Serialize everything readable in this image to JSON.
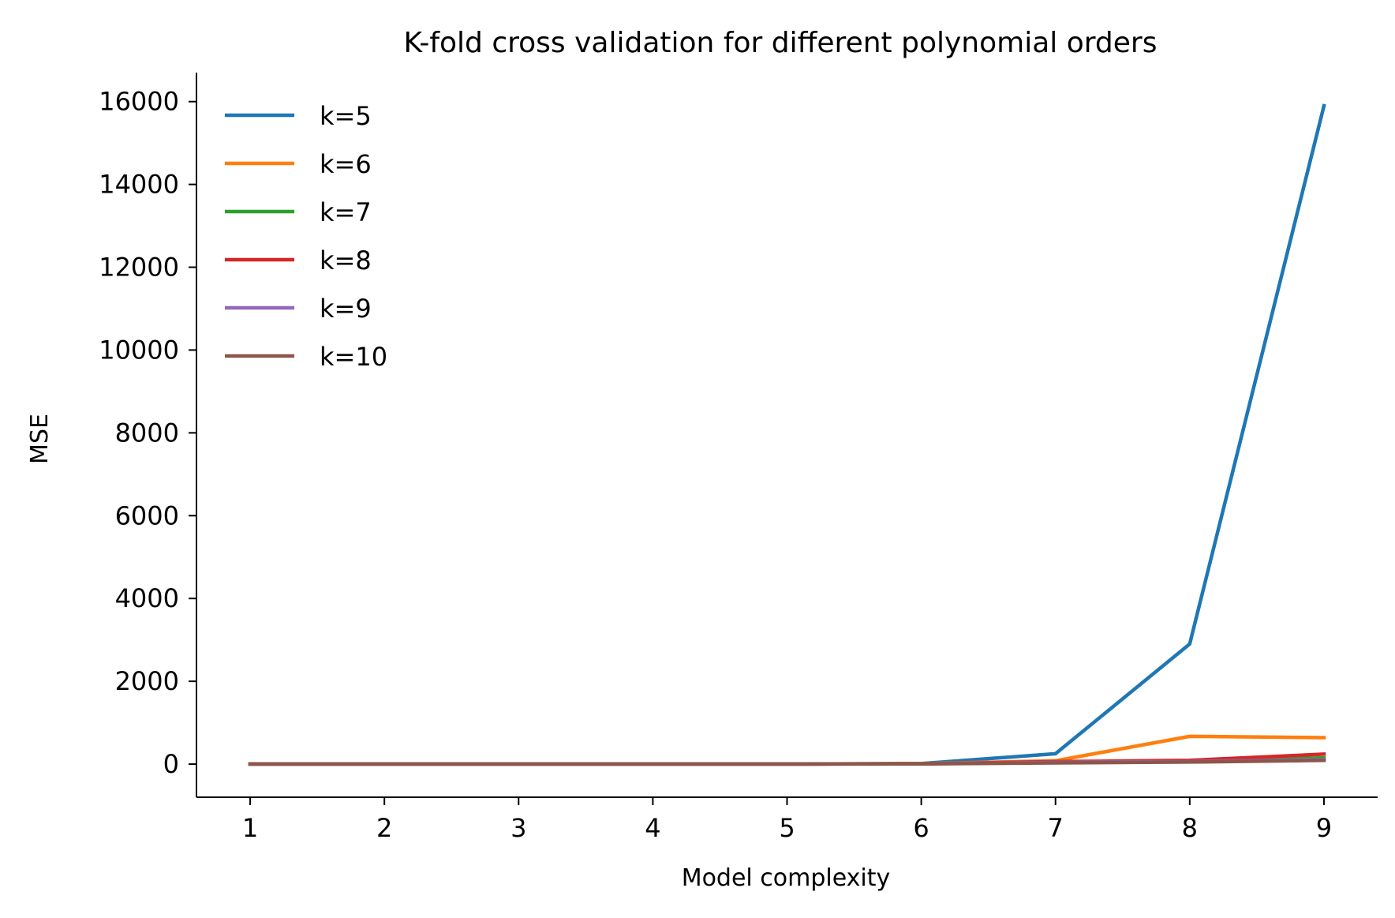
{
  "chart_data": {
    "type": "line",
    "title": "K-fold cross validation for different polynomial orders",
    "xlabel": "Model complexity",
    "ylabel": "MSE",
    "x": [
      1,
      2,
      3,
      4,
      5,
      6,
      7,
      8,
      9
    ],
    "xlim": [
      0.6,
      9.4
    ],
    "ylim": [
      -800,
      16700
    ],
    "xticks": [
      1,
      2,
      3,
      4,
      5,
      6,
      7,
      8,
      9
    ],
    "yticks": [
      0,
      2000,
      4000,
      6000,
      8000,
      10000,
      12000,
      14000,
      16000
    ],
    "grid": false,
    "legend_position": "upper-left",
    "series": [
      {
        "name": "k=5",
        "color": "#1f77b4",
        "values": [
          2,
          2,
          2,
          2,
          3,
          12,
          250,
          2900,
          15900
        ]
      },
      {
        "name": "k=6",
        "color": "#ff7f0e",
        "values": [
          2,
          2,
          2,
          2,
          3,
          10,
          80,
          670,
          640
        ]
      },
      {
        "name": "k=7",
        "color": "#2ca02c",
        "values": [
          2,
          2,
          2,
          2,
          3,
          8,
          50,
          80,
          150
        ]
      },
      {
        "name": "k=8",
        "color": "#d62728",
        "values": [
          2,
          2,
          2,
          2,
          3,
          8,
          60,
          90,
          240
        ]
      },
      {
        "name": "k=9",
        "color": "#9467bd",
        "values": [
          2,
          2,
          2,
          2,
          3,
          6,
          40,
          60,
          110
        ]
      },
      {
        "name": "k=10",
        "color": "#8c564b",
        "values": [
          2,
          2,
          2,
          2,
          3,
          6,
          30,
          50,
          90
        ]
      }
    ]
  }
}
